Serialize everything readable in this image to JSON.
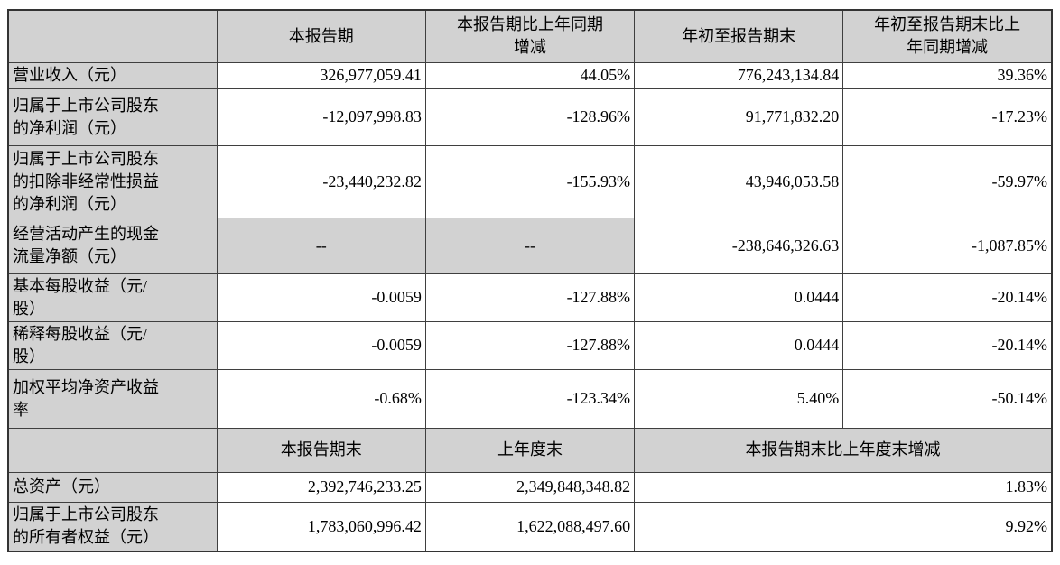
{
  "colors": {
    "cell_shade_gray": "#d2d2d2",
    "border": "#3f3f3f",
    "text": "#000000",
    "background": "#ffffff"
  },
  "table": {
    "header1": [
      "",
      "本报告期",
      "本报告期比上年同期\n增减",
      "年初至报告期末",
      "年初至报告期末比上\n年同期增减"
    ],
    "rows": [
      {
        "label": "营业收入（元）",
        "v1": "326,977,059.41",
        "v2": "44.05%",
        "v3": "776,243,134.84",
        "v4": "39.36%"
      },
      {
        "label": "归属于上市公司股东\n的净利润（元）",
        "v1": "-12,097,998.83",
        "v2": "-128.96%",
        "v3": "91,771,832.20",
        "v4": "-17.23%"
      },
      {
        "label": "归属于上市公司股东\n的扣除非经常性损益\n的净利润（元）",
        "v1": "-23,440,232.82",
        "v2": "-155.93%",
        "v3": "43,946,053.58",
        "v4": "-59.97%"
      },
      {
        "label": "经营活动产生的现金\n流量净额（元）",
        "v1": "--",
        "v2": "--",
        "v3": "-238,646,326.63",
        "v4": "-1,087.85%"
      },
      {
        "label": "基本每股收益（元/\n股）",
        "v1": "-0.0059",
        "v2": "-127.88%",
        "v3": "0.0444",
        "v4": "-20.14%"
      },
      {
        "label": "稀释每股收益（元/\n股）",
        "v1": "-0.0059",
        "v2": "-127.88%",
        "v3": "0.0444",
        "v4": "-20.14%"
      },
      {
        "label": "加权平均净资产收益\n率",
        "v1": "-0.68%",
        "v2": "-123.34%",
        "v3": "5.40%",
        "v4": "-50.14%"
      }
    ],
    "header2": [
      "",
      "本报告期末",
      "上年度末",
      "本报告期末比上年度末增减"
    ],
    "rows2": [
      {
        "label": "总资产（元）",
        "v1": "2,392,746,233.25",
        "v2": "2,349,848,348.82",
        "v3": "1.83%"
      },
      {
        "label": "归属于上市公司股东\n的所有者权益（元）",
        "v1": "1,783,060,996.42",
        "v2": "1,622,088,497.60",
        "v3": "9.92%"
      }
    ]
  }
}
